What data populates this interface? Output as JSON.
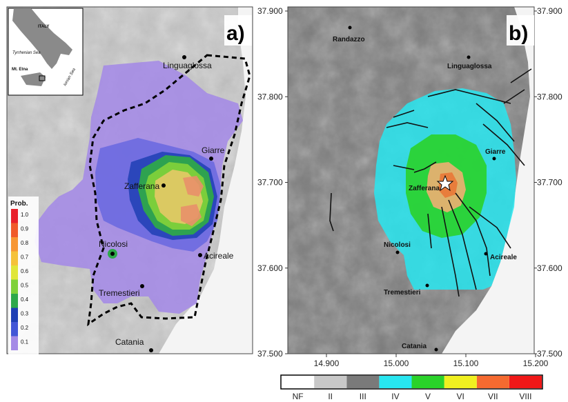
{
  "panel_a": {
    "label": "a)",
    "towns": [
      {
        "name": "Linguaglossa"
      },
      {
        "name": "Giarre"
      },
      {
        "name": "Zafferana"
      },
      {
        "name": "Nicolosi"
      },
      {
        "name": "Acireale"
      },
      {
        "name": "Tremestieri"
      },
      {
        "name": "Catania"
      }
    ],
    "inset": {
      "country": "ITALY",
      "sea1": "Tyrrhenian Sea",
      "sea2": "Ionian Sea",
      "volcano": "Mt. Etna"
    },
    "legend": {
      "title": "Prob.",
      "ticks": [
        "1.0",
        "0.9",
        "0.8",
        "0.7",
        "0.6",
        "0.5",
        "0.4",
        "0.3",
        "0.2",
        "0.1"
      ],
      "colors": [
        "#e8202a",
        "#f05a2a",
        "#f79633",
        "#f5c23a",
        "#e0e63a",
        "#7fd13a",
        "#2ea84a",
        "#1e3fb4",
        "#4256d6",
        "#a48ae6"
      ]
    }
  },
  "panel_b": {
    "label": "b)",
    "towns": [
      {
        "name": "Randazzo"
      },
      {
        "name": "Linguaglossa"
      },
      {
        "name": "Giarre"
      },
      {
        "name": "Zafferana"
      },
      {
        "name": "Nicolosi"
      },
      {
        "name": "Acireale"
      },
      {
        "name": "Tremestieri"
      },
      {
        "name": "Catania"
      }
    ],
    "y_ticks": [
      "37.900",
      "37.800",
      "37.700",
      "37.600",
      "37.500"
    ],
    "x_ticks": [
      "14.900",
      "15.000",
      "15.100",
      "15.200"
    ],
    "intensity_legend": {
      "labels": [
        "NF",
        "II",
        "III",
        "IV",
        "V",
        "VI",
        "VII",
        "VIII"
      ],
      "colors": [
        "#ffffff",
        "#c8c8c8",
        "#7a7a7a",
        "#28e6f0",
        "#2ad22a",
        "#f0f020",
        "#f56a30",
        "#f01818"
      ]
    }
  }
}
